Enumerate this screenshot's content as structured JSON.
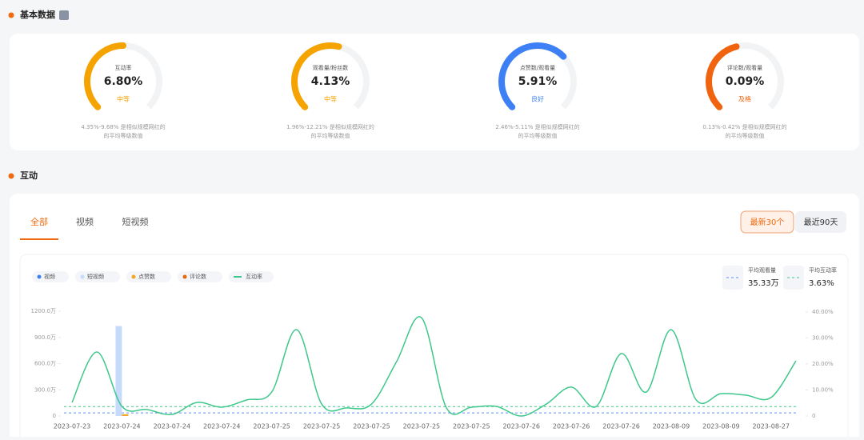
{
  "section1": {
    "title": "基本数据"
  },
  "metrics": [
    {
      "label": "互动率",
      "value": "6.80%",
      "level": "中等",
      "color": "#f5a300",
      "fill": 0.5,
      "range": "4.35%-9.68% 是相似规模网红的",
      "note": "的平均等级数值"
    },
    {
      "label": "观看量/粉丝数",
      "value": "4.13%",
      "level": "中等",
      "color": "#f5a300",
      "fill": 0.55,
      "range": "1.96%-12.21% 是相似规模网红的",
      "note": "的平均等级数值"
    },
    {
      "label": "点赞数/观看量",
      "value": "5.91%",
      "level": "良好",
      "color": "#3d7ff5",
      "fill": 0.67,
      "range": "2.46%-5.11% 是相似规模网红的",
      "note": "的平均等级数值"
    },
    {
      "label": "评论数/观看量",
      "value": "0.09%",
      "level": "及格",
      "color": "#f0640f",
      "fill": 0.45,
      "range": "0.13%-0.42% 是相似规模网红的",
      "note": "的平均等级数值"
    }
  ],
  "section2": {
    "title": "互动",
    "tabs": [
      "全部",
      "视频",
      "短视频"
    ],
    "buttons": [
      "最新30个",
      "最近90天"
    ]
  },
  "chart_data": {
    "type": "combo",
    "stats": [
      {
        "label": "平均观看量",
        "value": 35.33,
        "value_label": "35.33万",
        "color": "#5b8ff9"
      },
      {
        "label": "平均互动率",
        "value": 3.63,
        "value_label": "3.63%",
        "color": "#3ec78a"
      }
    ],
    "categories": [
      "2023-07-23",
      null,
      "2023-07-24",
      null,
      "2023-07-24",
      null,
      "2023-07-24",
      null,
      "2023-07-25",
      null,
      "2023-07-25",
      null,
      "2023-07-25",
      null,
      "2023-07-25",
      null,
      "2023-07-25",
      null,
      "2023-07-26",
      null,
      "2023-07-26",
      null,
      "2023-07-26",
      null,
      "2023-08-09",
      null,
      "2023-08-09",
      null,
      "2023-08-27",
      null
    ],
    "ylim": [
      0,
      1200
    ],
    "yticks": [
      0,
      {
        "value": 300,
        "label": "300.0万"
      },
      {
        "value": 600,
        "label": "600.0万"
      },
      {
        "value": 900,
        "label": "900.0万"
      },
      {
        "value": 1200,
        "label": "1200.0万"
      }
    ],
    "y2lim": [
      0,
      40
    ],
    "y2ticks": [
      0,
      {
        "value": 10,
        "label": "10.00%"
      },
      {
        "value": 20,
        "label": "20.00%"
      },
      {
        "value": 30,
        "label": "30.00%"
      },
      {
        "value": 40,
        "label": "40.00%"
      }
    ],
    "series": [
      {
        "name": "视频",
        "color": "#3d7ff5",
        "type": "bar",
        "values": [
          0,
          0,
          0,
          0,
          0,
          0,
          0,
          0,
          0,
          0,
          0,
          0,
          0,
          0,
          0,
          0,
          0,
          0,
          0,
          0,
          0,
          0,
          0,
          0,
          0,
          0,
          0,
          0,
          0,
          0
        ]
      },
      {
        "name": "短视频",
        "color": "#c6dafc",
        "type": "bar",
        "values": [
          0,
          0,
          1030,
          0,
          0,
          0,
          0,
          0,
          0,
          0,
          0,
          0,
          0,
          0,
          0,
          0,
          0,
          0,
          0,
          0,
          0,
          0,
          0,
          0,
          0,
          0,
          0,
          0,
          0,
          0
        ]
      },
      {
        "name": "点赞数",
        "color": "#f5a623",
        "type": "bar",
        "values": [
          0,
          0,
          20,
          0,
          0,
          0,
          0,
          0,
          0,
          0,
          0,
          0,
          0,
          0,
          0,
          0,
          0,
          0,
          0,
          0,
          0,
          0,
          0,
          0,
          0,
          0,
          0,
          0,
          0,
          0
        ]
      },
      {
        "name": "评论数",
        "color": "#e8650a",
        "type": "bar",
        "values": [
          0,
          0,
          0,
          0,
          0,
          0,
          0,
          0,
          0,
          0,
          0,
          0,
          0,
          0,
          0,
          0,
          0,
          0,
          0,
          0,
          0,
          0,
          0,
          0,
          0,
          0,
          0,
          0,
          0,
          0
        ]
      },
      {
        "name": "互动率",
        "color": "#3ec78a",
        "type": "line",
        "axis": "y2",
        "values": [
          5.2,
          24.6,
          3.7,
          2.5,
          0.6,
          5.2,
          3.4,
          6.2,
          9.2,
          33.2,
          4.6,
          3.1,
          4.6,
          20.9,
          37.8,
          3.1,
          3.4,
          3.7,
          0,
          4.6,
          11.1,
          3.7,
          24.0,
          9.2,
          33.2,
          6.2,
          8.6,
          8.0,
          7.1,
          21.2
        ]
      }
    ]
  }
}
